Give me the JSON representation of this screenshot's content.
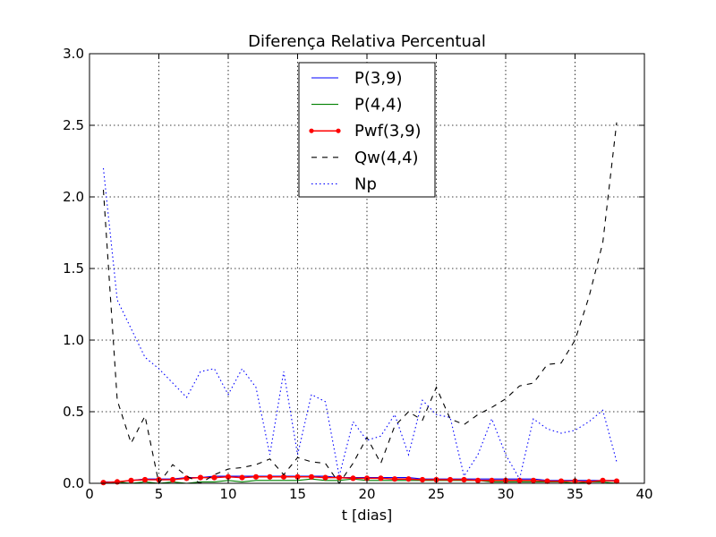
{
  "chart_data": {
    "type": "line",
    "title": "Diferença Relativa Percentual",
    "xlabel": "t [dias]",
    "ylabel": "",
    "xlim": [
      0,
      40
    ],
    "ylim": [
      0,
      3.0
    ],
    "xticks": [
      0,
      5,
      10,
      15,
      20,
      25,
      30,
      35,
      40
    ],
    "xtick_labels": [
      "0",
      "5",
      "10",
      "15",
      "20",
      "25",
      "30",
      "35",
      "40"
    ],
    "yticks": [
      0,
      0.5,
      1.0,
      1.5,
      2.0,
      2.5,
      3.0
    ],
    "ytick_labels": [
      "0.0",
      "0.5",
      "1.0",
      "1.5",
      "2.0",
      "2.5",
      "3.0"
    ],
    "grid": true,
    "legend_position": "upper-center",
    "x": [
      1,
      2,
      3,
      4,
      5,
      6,
      7,
      8,
      9,
      10,
      11,
      12,
      13,
      14,
      15,
      16,
      17,
      18,
      19,
      20,
      21,
      22,
      23,
      24,
      25,
      26,
      27,
      28,
      29,
      30,
      31,
      32,
      33,
      34,
      35,
      36,
      37,
      38
    ],
    "series": [
      {
        "name": "P(3,9)",
        "color": "#0000ff",
        "style": "solid",
        "marker": "none",
        "values": [
          0.01,
          0.01,
          0.02,
          0.03,
          0.03,
          0.03,
          0.04,
          0.04,
          0.05,
          0.05,
          0.05,
          0.05,
          0.05,
          0.05,
          0.05,
          0.05,
          0.05,
          0.04,
          0.04,
          0.04,
          0.04,
          0.04,
          0.04,
          0.03,
          0.03,
          0.03,
          0.03,
          0.03,
          0.03,
          0.03,
          0.03,
          0.03,
          0.02,
          0.02,
          0.02,
          0.02,
          0.02,
          0.02
        ]
      },
      {
        "name": "P(4,4)",
        "color": "#008000",
        "style": "solid",
        "marker": "none",
        "values": [
          0.0,
          0.01,
          0.0,
          0.01,
          0.0,
          0.01,
          0.0,
          0.01,
          0.01,
          0.02,
          0.01,
          0.02,
          0.02,
          0.02,
          0.02,
          0.03,
          0.02,
          0.02,
          0.03,
          0.02,
          0.02,
          0.02,
          0.02,
          0.02,
          0.02,
          0.02,
          0.02,
          0.02,
          0.01,
          0.01,
          0.01,
          0.01,
          0.01,
          0.01,
          0.0,
          0.01,
          0.01,
          0.0
        ]
      },
      {
        "name": "Pwf(3,9)",
        "color": "#ff0000",
        "style": "solid",
        "marker": "dot",
        "values": [
          0.005,
          0.01,
          0.02,
          0.025,
          0.025,
          0.025,
          0.035,
          0.04,
          0.04,
          0.045,
          0.04,
          0.045,
          0.045,
          0.045,
          0.045,
          0.045,
          0.04,
          0.04,
          0.035,
          0.035,
          0.035,
          0.03,
          0.03,
          0.025,
          0.025,
          0.025,
          0.025,
          0.02,
          0.02,
          0.02,
          0.02,
          0.02,
          0.015,
          0.015,
          0.015,
          0.01,
          0.02,
          0.015
        ]
      },
      {
        "name": "Qw(4,4)",
        "color": "#000000",
        "style": "dashed",
        "marker": "none",
        "values": [
          2.05,
          0.58,
          0.28,
          0.47,
          0.0,
          0.13,
          0.05,
          0.0,
          0.06,
          0.1,
          0.11,
          0.13,
          0.17,
          0.06,
          0.18,
          0.15,
          0.14,
          0.0,
          0.14,
          0.32,
          0.14,
          0.4,
          0.5,
          0.44,
          0.67,
          0.45,
          0.41,
          0.48,
          0.53,
          0.59,
          0.68,
          0.7,
          0.83,
          0.84,
          1.0,
          1.3,
          1.68,
          2.52
        ]
      },
      {
        "name": "Np",
        "color": "#0000ff",
        "style": "dotted",
        "marker": "none",
        "values": [
          2.2,
          1.28,
          1.08,
          0.88,
          0.8,
          0.7,
          0.6,
          0.78,
          0.8,
          0.62,
          0.8,
          0.67,
          0.2,
          0.78,
          0.2,
          0.62,
          0.57,
          0.05,
          0.43,
          0.3,
          0.33,
          0.48,
          0.2,
          0.58,
          0.48,
          0.46,
          0.05,
          0.2,
          0.45,
          0.2,
          0.03,
          0.45,
          0.38,
          0.35,
          0.37,
          0.43,
          0.51,
          0.15
        ]
      }
    ]
  }
}
